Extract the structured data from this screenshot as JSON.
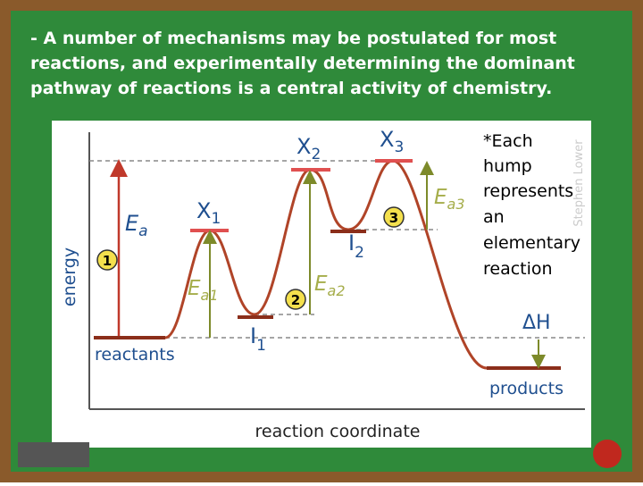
{
  "heading": {
    "lines": [
      "- A number of mechanisms may be postulated for most",
      "reactions, and experimentally determining the dominant",
      "pathway of reactions is a central activity of chemistry."
    ]
  },
  "diagram": {
    "y_axis_label": "energy",
    "x_axis_label": "reaction coordinate",
    "reactants": "reactants",
    "products": "products",
    "delta_h": "ΔH",
    "watermark": "Stephen Lower",
    "activation": {
      "base": "E",
      "sub": "a"
    },
    "transition_states": [
      {
        "base": "X",
        "sub": "1"
      },
      {
        "base": "X",
        "sub": "2"
      },
      {
        "base": "X",
        "sub": "3"
      }
    ],
    "intermediates": [
      {
        "base": "I",
        "sub": "1"
      },
      {
        "base": "I",
        "sub": "2"
      }
    ],
    "step_energies": [
      {
        "base": "E",
        "sub": "a1"
      },
      {
        "base": "E",
        "sub": "a2"
      },
      {
        "base": "E",
        "sub": "a3"
      }
    ],
    "step_numbers": [
      "1",
      "2",
      "3"
    ]
  },
  "note": {
    "lines": [
      "*Each",
      "hump",
      "represents",
      "an",
      "elementary",
      "reaction"
    ]
  }
}
